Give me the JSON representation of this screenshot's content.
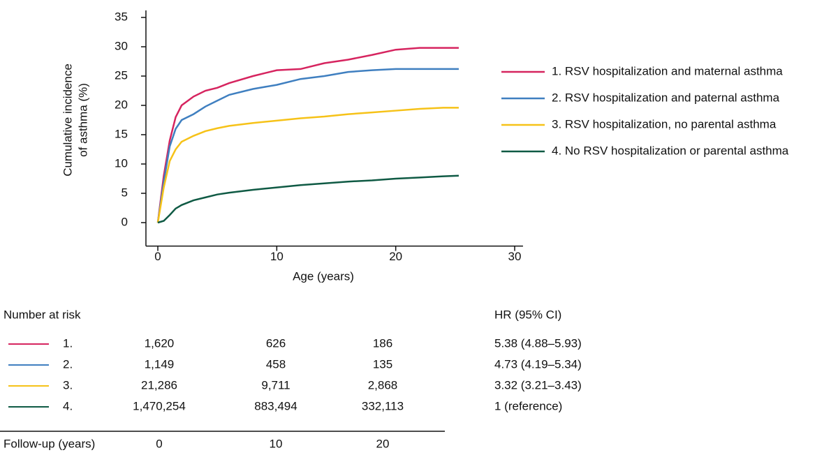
{
  "chart_data": {
    "type": "line",
    "ylabel": [
      "Cumulative incidence",
      "of asthma (%)"
    ],
    "xlabel": "Age (years)",
    "x": [
      0,
      0.5,
      1,
      1.5,
      2,
      3,
      4,
      5,
      6,
      8,
      10,
      12,
      14,
      16,
      18,
      20,
      22,
      24,
      25.3
    ],
    "series": [
      {
        "name": "1. RSV hospitalization and maternal asthma",
        "color": "#d6245f",
        "values": [
          0,
          8,
          14,
          18,
          20,
          21.5,
          22.5,
          23,
          23.8,
          25,
          26,
          26.2,
          27.2,
          27.8,
          28.6,
          29.5,
          29.8,
          29.8,
          29.8
        ]
      },
      {
        "name": "2. RSV hospitalization and paternal asthma",
        "color": "#3f7fc0",
        "values": [
          0,
          7,
          13,
          16,
          17.5,
          18.5,
          19.8,
          20.8,
          21.8,
          22.8,
          23.5,
          24.5,
          25,
          25.7,
          26,
          26.2,
          26.2,
          26.2,
          26.2
        ]
      },
      {
        "name": "3. RSV hospitalization, no parental asthma",
        "color": "#f6c218",
        "values": [
          0,
          6,
          10.5,
          12.5,
          13.8,
          14.8,
          15.6,
          16.1,
          16.5,
          17,
          17.4,
          17.8,
          18.1,
          18.5,
          18.8,
          19.1,
          19.4,
          19.6,
          19.6
        ]
      },
      {
        "name": "4. No RSV hospitalization or parental asthma",
        "color": "#0f5a44",
        "values": [
          0,
          0.3,
          1.3,
          2.4,
          3,
          3.8,
          4.3,
          4.8,
          5.1,
          5.6,
          6,
          6.4,
          6.7,
          7,
          7.2,
          7.5,
          7.7,
          7.9,
          8.0
        ]
      }
    ],
    "xlim": [
      -1,
      30.7
    ],
    "ylim": [
      -4,
      36.2
    ],
    "xticks": [
      0,
      10,
      20,
      30
    ],
    "yticks": [
      0,
      5,
      10,
      15,
      20,
      25,
      30,
      35
    ],
    "legend": "right"
  },
  "risk_table": {
    "title": "Number at risk",
    "hr_title": "HR (95% CI)",
    "rows": [
      {
        "label": "1.",
        "counts": [
          "1,620",
          "626",
          "186"
        ],
        "hr": "5.38 (4.88–5.93)"
      },
      {
        "label": "2.",
        "counts": [
          "1,149",
          "458",
          "135"
        ],
        "hr": "4.73 (4.19–5.34)"
      },
      {
        "label": "3.",
        "counts": [
          "21,286",
          "9,711",
          "2,868"
        ],
        "hr": "3.32 (3.21–3.43)"
      },
      {
        "label": "4.",
        "counts": [
          "1,470,254",
          "883,494",
          "332,113"
        ],
        "hr": "1 (reference)"
      }
    ],
    "axis_title": "Follow-up (years)",
    "axis_labels": [
      "0",
      "10",
      "20"
    ]
  }
}
